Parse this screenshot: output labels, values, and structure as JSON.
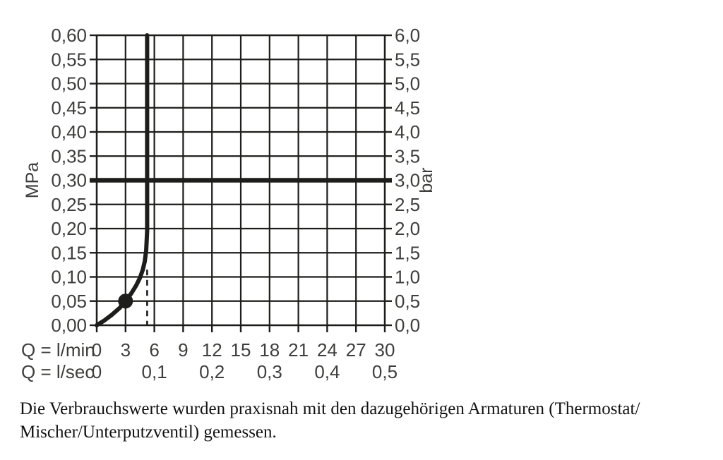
{
  "chart_data": {
    "type": "line",
    "title": "",
    "x_axis": {
      "range_lmin": [
        0,
        30
      ],
      "grid_step_lmin": 3,
      "unit_rows": [
        {
          "label": "Q = l/min",
          "ticks": [
            {
              "x": 0,
              "text": "0"
            },
            {
              "x": 3,
              "text": "3"
            },
            {
              "x": 6,
              "text": "6"
            },
            {
              "x": 9,
              "text": "9"
            },
            {
              "x": 12,
              "text": "12"
            },
            {
              "x": 15,
              "text": "15"
            },
            {
              "x": 18,
              "text": "18"
            },
            {
              "x": 21,
              "text": "21"
            },
            {
              "x": 24,
              "text": "24"
            },
            {
              "x": 27,
              "text": "27"
            },
            {
              "x": 30,
              "text": "30"
            }
          ]
        },
        {
          "label": "Q = l/sec",
          "ticks": [
            {
              "x": 0,
              "text": "0"
            },
            {
              "x": 6,
              "text": "0,1"
            },
            {
              "x": 12,
              "text": "0,2"
            },
            {
              "x": 18,
              "text": "0,3"
            },
            {
              "x": 24,
              "text": "0,4"
            },
            {
              "x": 30,
              "text": "0,5"
            }
          ]
        }
      ]
    },
    "y_axis_left": {
      "label": "MPa",
      "range_mpa": [
        0,
        0.6
      ],
      "grid_step_mpa": 0.05,
      "ticks": [
        {
          "y": 0.6,
          "text": "0,60"
        },
        {
          "y": 0.55,
          "text": "0,55"
        },
        {
          "y": 0.5,
          "text": "0,50"
        },
        {
          "y": 0.45,
          "text": "0,45"
        },
        {
          "y": 0.4,
          "text": "0,40"
        },
        {
          "y": 0.35,
          "text": "0,35"
        },
        {
          "y": 0.3,
          "text": "0,30"
        },
        {
          "y": 0.25,
          "text": "0,25"
        },
        {
          "y": 0.2,
          "text": "0,20"
        },
        {
          "y": 0.15,
          "text": "0,15"
        },
        {
          "y": 0.1,
          "text": "0,10"
        },
        {
          "y": 0.05,
          "text": "0,05"
        },
        {
          "y": 0.0,
          "text": "0,00"
        }
      ]
    },
    "y_axis_right": {
      "label": "bar",
      "ticks": [
        {
          "y": 0.6,
          "text": "6,0"
        },
        {
          "y": 0.55,
          "text": "5,5"
        },
        {
          "y": 0.5,
          "text": "5,0"
        },
        {
          "y": 0.45,
          "text": "4,5"
        },
        {
          "y": 0.4,
          "text": "4,0"
        },
        {
          "y": 0.35,
          "text": "3,5"
        },
        {
          "y": 0.3,
          "text": "3,0"
        },
        {
          "y": 0.25,
          "text": "2,5"
        },
        {
          "y": 0.2,
          "text": "2,0"
        },
        {
          "y": 0.15,
          "text": "1,5"
        },
        {
          "y": 0.1,
          "text": "1,0"
        },
        {
          "y": 0.05,
          "text": "0,5"
        },
        {
          "y": 0.0,
          "text": "0,0"
        }
      ]
    },
    "reference_line": {
      "mpa": 0.3,
      "bar": 3.0
    },
    "curve": {
      "points_lmin_mpa": [
        [
          0,
          0.0
        ],
        [
          0.8,
          0.01
        ],
        [
          1.6,
          0.022
        ],
        [
          2.4,
          0.036
        ],
        [
          3.0,
          0.05
        ],
        [
          3.6,
          0.066
        ],
        [
          4.1,
          0.082
        ],
        [
          4.5,
          0.098
        ],
        [
          4.8,
          0.115
        ],
        [
          5.0,
          0.132
        ],
        [
          5.15,
          0.155
        ],
        [
          5.25,
          0.195
        ],
        [
          5.25,
          0.6
        ]
      ],
      "marker_lmin_mpa": [
        3,
        0.05
      ]
    },
    "dashed_guide": {
      "x_lmin": 5.25,
      "from_mpa": 0.0,
      "to_mpa": 0.115
    },
    "grid": true,
    "legend": "none",
    "line_color": "#1d1d1b",
    "text_color": "#3e3e3c"
  },
  "caption": {
    "lines": [
      "Die Verbrauchswerte wurden praxisnah mit den dazugehörigen Armaturen (Thermostat/",
      "Mischer/Unterputzventil) gemessen."
    ]
  }
}
